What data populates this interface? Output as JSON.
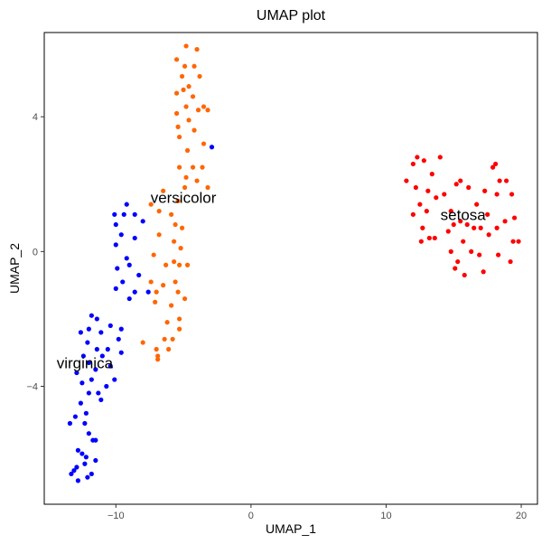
{
  "chart_data": {
    "type": "scatter",
    "title": "UMAP plot",
    "xlabel": "UMAP_1",
    "ylabel": "UMAP_2",
    "xlim": [
      -15.3,
      21.2
    ],
    "ylim": [
      -7.5,
      6.5
    ],
    "x_ticks": [
      -10,
      0,
      10,
      20
    ],
    "x_tick_labels": [
      "−10",
      "0",
      "10",
      "20"
    ],
    "y_ticks": [
      -4,
      0,
      4
    ],
    "y_tick_labels": [
      "−4",
      "0",
      "4"
    ],
    "grid": false,
    "legend": "none",
    "series": [
      {
        "name": "setosa",
        "color": "#ff0000",
        "points": [
          [
            11.5,
            2.1
          ],
          [
            12.0,
            2.6
          ],
          [
            12.3,
            2.8
          ],
          [
            12.8,
            2.7
          ],
          [
            13.4,
            2.3
          ],
          [
            14.0,
            2.8
          ],
          [
            12.2,
            1.9
          ],
          [
            12.5,
            1.4
          ],
          [
            13.1,
            1.8
          ],
          [
            13.7,
            1.6
          ],
          [
            14.3,
            1.7
          ],
          [
            14.8,
            1.2
          ],
          [
            15.2,
            2.0
          ],
          [
            15.5,
            2.1
          ],
          [
            16.1,
            1.9
          ],
          [
            16.7,
            1.4
          ],
          [
            17.3,
            1.8
          ],
          [
            17.9,
            2.5
          ],
          [
            18.1,
            2.6
          ],
          [
            18.4,
            2.1
          ],
          [
            18.9,
            2.1
          ],
          [
            19.3,
            1.7
          ],
          [
            18.2,
            1.7
          ],
          [
            17.5,
            1.1
          ],
          [
            12.0,
            1.1
          ],
          [
            13.0,
            1.2
          ],
          [
            12.7,
            0.7
          ],
          [
            13.2,
            0.4
          ],
          [
            13.6,
            0.4
          ],
          [
            12.6,
            0.3
          ],
          [
            14.6,
            0.6
          ],
          [
            15.0,
            0.8
          ],
          [
            15.5,
            0.9
          ],
          [
            16.0,
            0.8
          ],
          [
            16.5,
            0.7
          ],
          [
            17.0,
            0.7
          ],
          [
            17.6,
            0.5
          ],
          [
            18.2,
            0.7
          ],
          [
            18.8,
            0.9
          ],
          [
            19.5,
            1.0
          ],
          [
            19.4,
            0.3
          ],
          [
            19.8,
            0.3
          ],
          [
            15.7,
            0.3
          ],
          [
            16.3,
            0.0
          ],
          [
            14.8,
            0.0
          ],
          [
            15.3,
            -0.3
          ],
          [
            16.9,
            -0.1
          ],
          [
            18.3,
            -0.1
          ],
          [
            19.2,
            -0.3
          ],
          [
            15.1,
            -0.5
          ],
          [
            15.8,
            -0.7
          ],
          [
            17.2,
            -0.6
          ]
        ]
      },
      {
        "name": "versicolor",
        "color": "#ff6600",
        "points": [
          [
            -4.8,
            6.1
          ],
          [
            -4.0,
            6.0
          ],
          [
            -5.5,
            5.7
          ],
          [
            -4.9,
            5.5
          ],
          [
            -4.2,
            5.5
          ],
          [
            -5.1,
            5.2
          ],
          [
            -3.8,
            5.2
          ],
          [
            -4.6,
            4.9
          ],
          [
            -5.5,
            4.7
          ],
          [
            -5.0,
            4.8
          ],
          [
            -4.3,
            4.6
          ],
          [
            -3.5,
            4.3
          ],
          [
            -4.8,
            4.3
          ],
          [
            -3.9,
            4.2
          ],
          [
            -5.5,
            4.1
          ],
          [
            -3.2,
            4.2
          ],
          [
            -5.4,
            3.7
          ],
          [
            -4.6,
            3.9
          ],
          [
            -4.2,
            3.6
          ],
          [
            -5.3,
            3.4
          ],
          [
            -3.5,
            3.2
          ],
          [
            -4.7,
            3.0
          ],
          [
            -4.3,
            2.5
          ],
          [
            -5.3,
            2.5
          ],
          [
            -4.8,
            2.2
          ],
          [
            -3.6,
            2.5
          ],
          [
            -4.0,
            2.1
          ],
          [
            -3.2,
            1.9
          ],
          [
            -6.5,
            1.8
          ],
          [
            -4.9,
            1.9
          ],
          [
            -5.4,
            1.5
          ],
          [
            -7.4,
            1.4
          ],
          [
            -6.8,
            1.2
          ],
          [
            -5.9,
            1.1
          ],
          [
            -5.6,
            0.8
          ],
          [
            -5.1,
            0.7
          ],
          [
            -6.8,
            0.5
          ],
          [
            -5.7,
            0.3
          ],
          [
            -5.2,
            0.1
          ],
          [
            -7.2,
            -0.1
          ],
          [
            -5.7,
            -0.3
          ],
          [
            -5.3,
            -0.4
          ],
          [
            -6.3,
            -0.4
          ],
          [
            -4.7,
            -0.4
          ],
          [
            -7.4,
            -0.9
          ],
          [
            -5.6,
            -0.9
          ],
          [
            -6.5,
            -1.0
          ],
          [
            -7.0,
            -1.2
          ],
          [
            -5.4,
            -1.2
          ],
          [
            -5.9,
            -1.6
          ],
          [
            -4.9,
            -1.4
          ],
          [
            -7.1,
            -1.5
          ],
          [
            -5.3,
            -2.0
          ],
          [
            -6.2,
            -2.1
          ],
          [
            -5.3,
            -2.3
          ],
          [
            -5.8,
            -2.6
          ],
          [
            -6.1,
            -2.9
          ],
          [
            -6.4,
            -2.6
          ],
          [
            -7.0,
            -2.9
          ],
          [
            -8.0,
            -2.7
          ],
          [
            -6.9,
            -3.2
          ],
          [
            -6.9,
            -3.1
          ]
        ]
      },
      {
        "name": "virginica",
        "color": "#0000ff",
        "points": [
          [
            -2.9,
            3.1
          ],
          [
            -9.2,
            1.4
          ],
          [
            -10.1,
            1.1
          ],
          [
            -9.4,
            1.1
          ],
          [
            -8.6,
            1.1
          ],
          [
            -10.0,
            0.8
          ],
          [
            -8.0,
            0.9
          ],
          [
            -9.6,
            0.5
          ],
          [
            -8.6,
            0.4
          ],
          [
            -10.0,
            0.2
          ],
          [
            -9.2,
            -0.2
          ],
          [
            -9.0,
            -0.4
          ],
          [
            -9.9,
            -0.5
          ],
          [
            -8.3,
            -0.7
          ],
          [
            -9.5,
            -0.9
          ],
          [
            -10.0,
            -1.1
          ],
          [
            -8.6,
            -1.2
          ],
          [
            -7.6,
            -1.2
          ],
          [
            -9.0,
            -1.4
          ],
          [
            -11.8,
            -1.9
          ],
          [
            -11.4,
            -2.0
          ],
          [
            -10.4,
            -2.2
          ],
          [
            -12.0,
            -2.3
          ],
          [
            -9.6,
            -2.3
          ],
          [
            -12.6,
            -2.4
          ],
          [
            -9.8,
            -2.6
          ],
          [
            -11.1,
            -2.4
          ],
          [
            -12.1,
            -2.7
          ],
          [
            -11.4,
            -2.9
          ],
          [
            -10.6,
            -2.9
          ],
          [
            -9.6,
            -3.0
          ],
          [
            -12.4,
            -3.1
          ],
          [
            -11.0,
            -3.1
          ],
          [
            -12.0,
            -3.3
          ],
          [
            -10.4,
            -3.4
          ],
          [
            -11.5,
            -3.5
          ],
          [
            -12.9,
            -3.6
          ],
          [
            -10.1,
            -3.8
          ],
          [
            -11.8,
            -3.8
          ],
          [
            -12.5,
            -3.9
          ],
          [
            -10.7,
            -4.0
          ],
          [
            -12.0,
            -4.2
          ],
          [
            -11.3,
            -4.2
          ],
          [
            -12.6,
            -4.5
          ],
          [
            -11.1,
            -4.4
          ],
          [
            -12.2,
            -4.8
          ],
          [
            -13.0,
            -4.9
          ],
          [
            -12.3,
            -5.1
          ],
          [
            -13.4,
            -5.1
          ],
          [
            -12.0,
            -5.4
          ],
          [
            -11.7,
            -5.6
          ],
          [
            -11.5,
            -5.6
          ],
          [
            -12.8,
            -5.9
          ],
          [
            -12.5,
            -6.0
          ],
          [
            -12.2,
            -6.1
          ],
          [
            -11.5,
            -6.2
          ],
          [
            -12.3,
            -6.3
          ],
          [
            -12.9,
            -6.4
          ],
          [
            -13.1,
            -6.5
          ],
          [
            -11.8,
            -6.6
          ],
          [
            -12.8,
            -6.8
          ],
          [
            -12.1,
            -6.7
          ],
          [
            -13.3,
            -6.6
          ]
        ]
      }
    ],
    "annotations": [
      {
        "text": "versicolor",
        "x": -5.0,
        "y": 1.6
      },
      {
        "text": "setosa",
        "x": 15.7,
        "y": 1.1
      },
      {
        "text": "virginica",
        "x": -12.3,
        "y": -3.3
      }
    ]
  }
}
